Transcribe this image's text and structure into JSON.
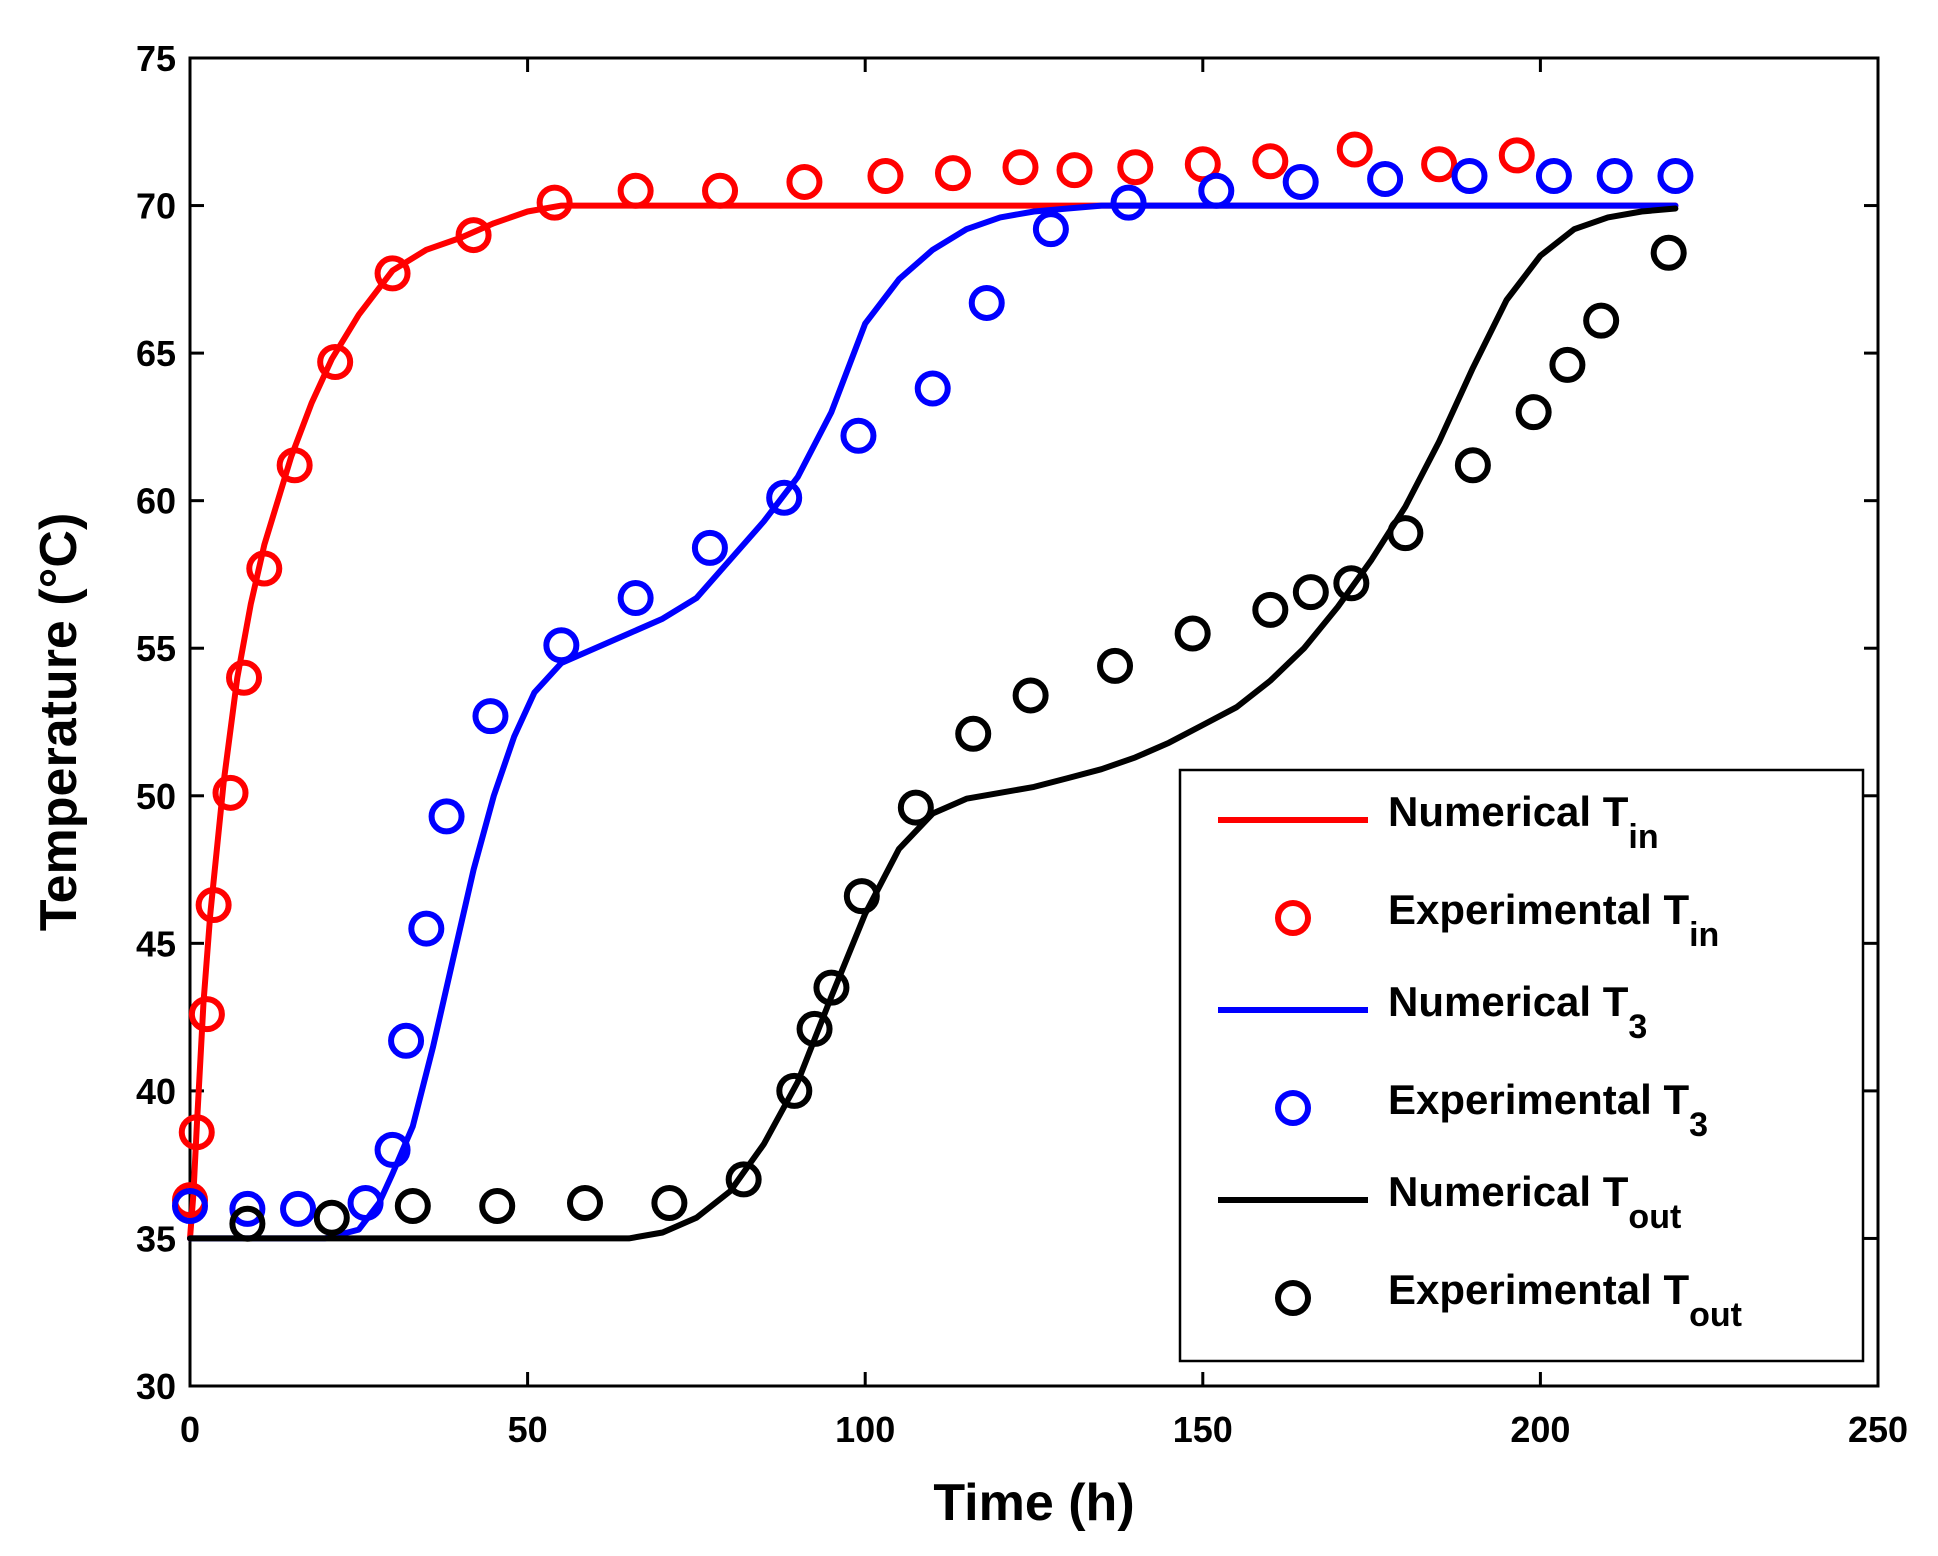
{
  "chart_data": {
    "type": "line",
    "xlabel": "Time (h)",
    "ylabel": "Temperature (°C)",
    "xlim": [
      0,
      250
    ],
    "ylim": [
      30,
      75
    ],
    "xticks": [
      0,
      50,
      100,
      150,
      200,
      250
    ],
    "yticks": [
      30,
      35,
      40,
      45,
      50,
      55,
      60,
      65,
      70,
      75
    ],
    "grid": false,
    "legend_position": "bottom-right",
    "series": [
      {
        "name": "Numerical T",
        "subscript": "in",
        "kind": "line",
        "color": "#ff0000",
        "x": [
          0,
          0.5,
          1,
          2,
          3,
          5,
          7,
          9,
          11,
          13,
          15,
          18,
          21,
          25,
          30,
          35,
          40,
          45,
          50,
          55,
          60,
          80,
          100,
          130,
          160,
          190,
          220
        ],
        "y": [
          35.0,
          36.5,
          38.8,
          43.0,
          46.0,
          50.5,
          54.0,
          56.5,
          58.5,
          60.0,
          61.5,
          63.3,
          64.8,
          66.3,
          67.8,
          68.5,
          68.9,
          69.4,
          69.8,
          70.0,
          70.0,
          70.0,
          70.0,
          70.0,
          70.0,
          70.0,
          70.0
        ]
      },
      {
        "name": "Experimental T",
        "subscript": "in",
        "kind": "scatter",
        "color": "#ff0000",
        "x": [
          0,
          1,
          2.5,
          3.5,
          6,
          8,
          11,
          15.5,
          21.5,
          30,
          42,
          54,
          66,
          78.5,
          91,
          103,
          113,
          123,
          131,
          140,
          150,
          160,
          172.5,
          185,
          196.5
        ],
        "y": [
          36.3,
          38.6,
          42.6,
          46.3,
          50.1,
          54.0,
          57.7,
          61.2,
          64.7,
          67.7,
          69.0,
          70.1,
          70.5,
          70.5,
          70.8,
          71.0,
          71.1,
          71.3,
          71.2,
          71.3,
          71.4,
          71.5,
          71.9,
          71.4,
          71.7
        ]
      },
      {
        "name": "Numerical T",
        "subscript": "3",
        "kind": "line",
        "color": "#0000ff",
        "x": [
          0,
          20,
          25,
          28,
          30,
          33,
          36,
          39,
          42,
          45,
          48,
          51,
          55,
          60,
          65,
          70,
          75,
          80,
          85,
          90,
          95,
          100,
          105,
          110,
          115,
          120,
          125,
          130,
          135,
          140,
          180,
          220
        ],
        "y": [
          35.0,
          35.0,
          35.3,
          36.2,
          37.2,
          38.8,
          41.5,
          44.5,
          47.5,
          50.0,
          52.0,
          53.5,
          54.5,
          55.0,
          55.5,
          56.0,
          56.7,
          58.0,
          59.3,
          60.8,
          63.0,
          66.0,
          67.5,
          68.5,
          69.2,
          69.6,
          69.8,
          69.9,
          70.0,
          70.0,
          70.0,
          70.0
        ]
      },
      {
        "name": "Experimental T",
        "subscript": "3",
        "kind": "scatter",
        "color": "#0000ff",
        "x": [
          0,
          8.5,
          16,
          26,
          30,
          32,
          35,
          38,
          44.5,
          55,
          66,
          77,
          88,
          99,
          110,
          118,
          127.5,
          139,
          152,
          164.5,
          177,
          189.5,
          202,
          211,
          220
        ],
        "y": [
          36.1,
          36.0,
          36.0,
          36.2,
          38.0,
          41.7,
          45.5,
          49.3,
          52.7,
          55.1,
          56.7,
          58.4,
          60.1,
          62.2,
          63.8,
          66.7,
          69.2,
          70.1,
          70.5,
          70.8,
          70.9,
          71.0,
          71.0,
          71.0,
          71.0
        ]
      },
      {
        "name": "Numerical T",
        "subscript": "out",
        "kind": "line",
        "color": "#000000",
        "x": [
          0,
          65,
          70,
          75,
          80,
          85,
          90,
          95,
          100,
          105,
          110,
          115,
          120,
          125,
          130,
          135,
          140,
          145,
          150,
          155,
          160,
          165,
          170,
          175,
          180,
          185,
          190,
          195,
          200,
          205,
          210,
          215,
          220
        ],
        "y": [
          35.0,
          35.0,
          35.2,
          35.7,
          36.6,
          38.2,
          40.3,
          43.2,
          46.0,
          48.2,
          49.4,
          49.9,
          50.1,
          50.3,
          50.6,
          50.9,
          51.3,
          51.8,
          52.4,
          53.0,
          53.9,
          55.0,
          56.4,
          58.0,
          59.8,
          62.0,
          64.5,
          66.8,
          68.3,
          69.2,
          69.6,
          69.8,
          69.9
        ]
      },
      {
        "name": "Experimental T",
        "subscript": "out",
        "kind": "scatter",
        "color": "#000000",
        "x": [
          8.5,
          21,
          33,
          45.5,
          58.5,
          71,
          82,
          89.5,
          92.5,
          95,
          99.5,
          107.5,
          116,
          124.5,
          137,
          148.5,
          160,
          166,
          172,
          180,
          190,
          199,
          204,
          209,
          219
        ],
        "y": [
          35.5,
          35.7,
          36.1,
          36.1,
          36.2,
          36.2,
          37.0,
          40.0,
          42.1,
          43.5,
          46.6,
          49.6,
          52.1,
          53.4,
          54.4,
          55.5,
          56.3,
          56.9,
          57.2,
          58.9,
          61.2,
          63.0,
          64.6,
          66.1,
          68.4
        ]
      }
    ]
  }
}
